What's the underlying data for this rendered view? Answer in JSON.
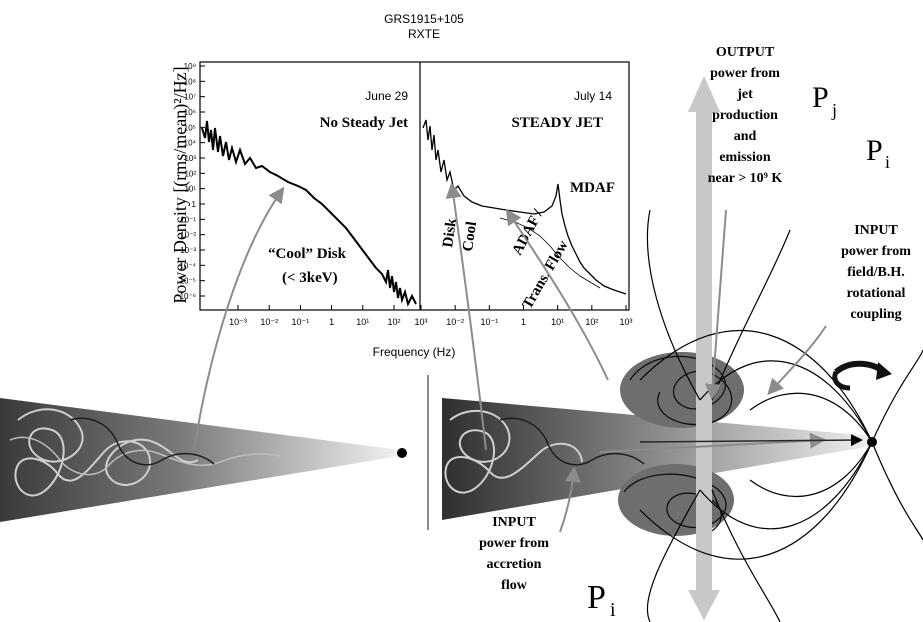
{
  "figure": {
    "title": "GRS1915+105",
    "subtitle": "RXTE",
    "y_axis_label": "Power Density [(rms/mean)²/Hz]",
    "x_axis_label": "Frequency (Hz)"
  },
  "left_panel": {
    "date": "June 29",
    "heading": "No Steady Jet",
    "disk_label_line1": "“Cool” Disk",
    "disk_label_line2": "(< 3keV)",
    "y_ticks": [
      "10⁹",
      "10⁸",
      "10⁷",
      "10⁶",
      "10⁵",
      "10⁴",
      "10³",
      "10²",
      "10¹",
      "1",
      "10⁻¹",
      "10⁻²",
      "10⁻³",
      "10⁻⁴",
      "10⁻⁵",
      "10⁻⁶"
    ],
    "x_ticks": [
      "10⁻³",
      "10⁻²",
      "10⁻¹",
      "1",
      "10¹",
      "10²"
    ]
  },
  "right_panel": {
    "date": "July 14",
    "heading": "STEADY JET",
    "mdaf_label": "MDAF",
    "cool_label": "Cool",
    "disk_label": "Disk",
    "adaf_label": "ADAF /",
    "trans_flow_label": "Trans. Flow",
    "x_ticks": [
      "10³",
      "10⁻²",
      "10⁻¹",
      "1",
      "10¹",
      "10²",
      "10³"
    ]
  },
  "annotations": {
    "output_lines": [
      "OUTPUT",
      "power from",
      "jet",
      "production",
      "and",
      "emission",
      "near > 10⁹ K"
    ],
    "input_field_lines": [
      "INPUT",
      "power from",
      "field/B.H.",
      "rotational",
      "coupling"
    ],
    "input_accretion_lines": [
      "INPUT",
      "power from",
      "accretion",
      "flow"
    ],
    "pj": "P",
    "pj_sub": "j",
    "pi_top": "P",
    "pi_top_sub": "i",
    "pi_bottom": "P",
    "pi_bottom_sub": "i"
  }
}
